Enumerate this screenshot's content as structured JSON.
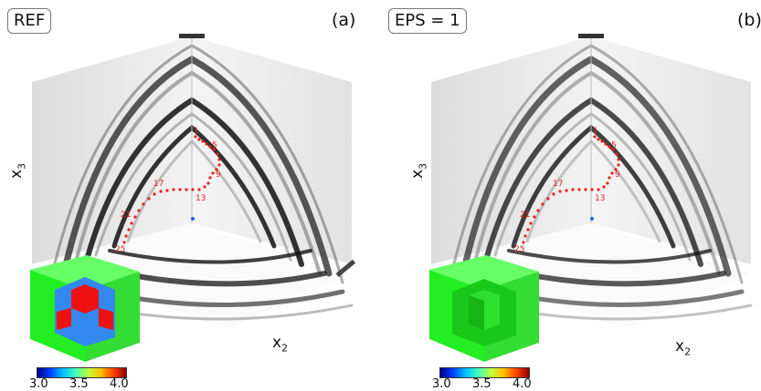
{
  "panels": [
    {
      "id": "a",
      "tag": "REF",
      "letter": "(a)",
      "axis_vertical": "x",
      "axis_vertical_sub": "3",
      "axis_horizontal": "x",
      "axis_horizontal_sub": "2",
      "point_labels": [
        "1",
        "5",
        "9",
        "13",
        "17",
        "21",
        "25"
      ],
      "cube": "inclusion",
      "colorbar_ticks": [
        "3.0",
        "3.5",
        "4.0"
      ]
    },
    {
      "id": "b",
      "tag": "EPS = 1",
      "letter": "(b)",
      "axis_vertical": "x",
      "axis_vertical_sub": "3",
      "axis_horizontal": "x",
      "axis_horizontal_sub": "2",
      "point_labels": [
        "1",
        "5",
        "9",
        "13",
        "17",
        "21",
        "25"
      ],
      "cube": "homogeneous-cut",
      "colorbar_ticks": [
        "3.0",
        "3.5",
        "4.0"
      ]
    }
  ],
  "colors": {
    "receivers": "#e8211d",
    "cube_green": "#22ee22",
    "cube_red": "#ee1111",
    "cube_blue": "#3388ee"
  },
  "colormap": "jet"
}
